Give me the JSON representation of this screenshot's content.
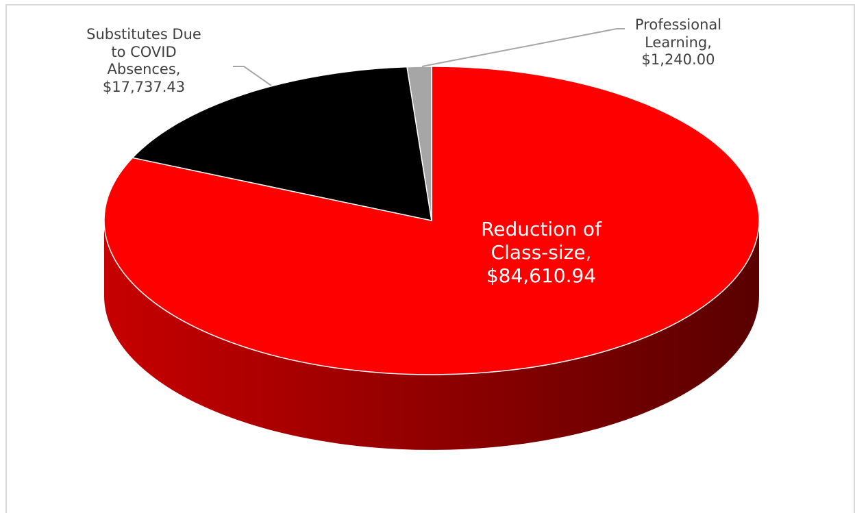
{
  "chart_data": {
    "type": "pie3d",
    "categories": [
      "Reduction of Class-size",
      "Substitutes Due to COVID Absences",
      "Professional Learning"
    ],
    "label_separator": ",",
    "values": [
      84610.94,
      17737.43,
      1240.0
    ],
    "value_labels": [
      "$84,610.94",
      "$17,737.43",
      "$1,240.00"
    ],
    "colors": [
      "#ff0000",
      "#000000",
      "#a6a6a6"
    ]
  }
}
